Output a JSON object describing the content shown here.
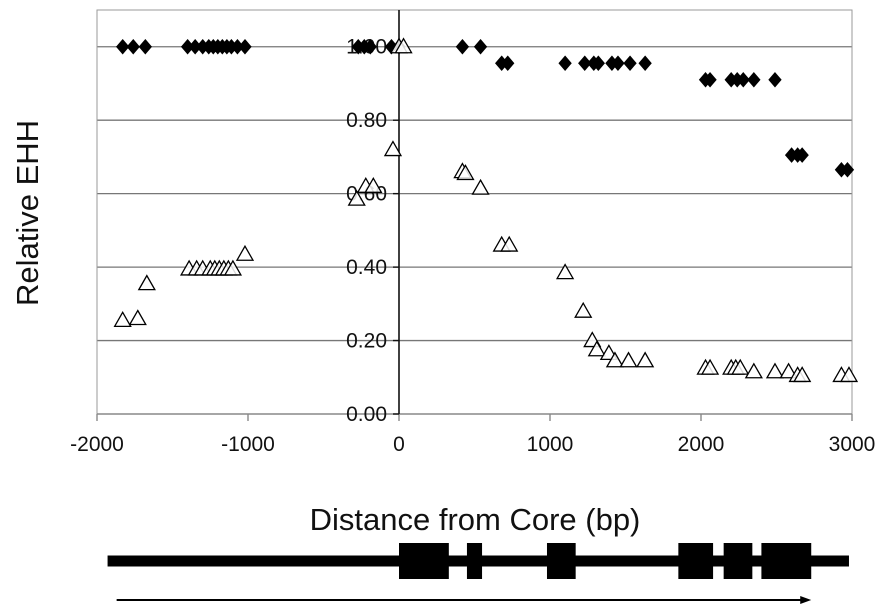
{
  "chart_data": {
    "type": "scatter",
    "title": "",
    "xlabel": "Distance from Core (bp)",
    "ylabel": "Relative EHH",
    "xlim": [
      -2000,
      3000
    ],
    "ylim": [
      0,
      1.1
    ],
    "x_ticks": [
      -2000,
      -1000,
      0,
      1000,
      2000,
      3000
    ],
    "x_tick_labels": [
      "-2000",
      "-1000",
      "0",
      "1000",
      "2000",
      "3000"
    ],
    "y_ticks": [
      0,
      0.2,
      0.4,
      0.6,
      0.8,
      1.0
    ],
    "y_tick_labels": [
      "0.00",
      "0.20",
      "0.40",
      "0.60",
      "0.80",
      "1.00"
    ],
    "grid": "horizontal",
    "legend": "none",
    "series": [
      {
        "marker": "diamond-filled",
        "color": "#000000",
        "points": [
          {
            "x": -1830,
            "y": 1.0
          },
          {
            "x": -1760,
            "y": 1.0
          },
          {
            "x": -1680,
            "y": 1.0
          },
          {
            "x": -1400,
            "y": 1.0
          },
          {
            "x": -1350,
            "y": 1.0
          },
          {
            "x": -1300,
            "y": 1.0
          },
          {
            "x": -1260,
            "y": 1.0
          },
          {
            "x": -1230,
            "y": 1.0
          },
          {
            "x": -1200,
            "y": 1.0
          },
          {
            "x": -1170,
            "y": 1.0
          },
          {
            "x": -1140,
            "y": 1.0
          },
          {
            "x": -1110,
            "y": 1.0
          },
          {
            "x": -1070,
            "y": 1.0
          },
          {
            "x": -1020,
            "y": 1.0
          },
          {
            "x": -270,
            "y": 1.0
          },
          {
            "x": -230,
            "y": 1.0
          },
          {
            "x": -190,
            "y": 1.0
          },
          {
            "x": -50,
            "y": 1.0
          },
          {
            "x": 0,
            "y": 1.0
          },
          {
            "x": 420,
            "y": 1.0
          },
          {
            "x": 540,
            "y": 1.0
          },
          {
            "x": 680,
            "y": 0.955
          },
          {
            "x": 720,
            "y": 0.955
          },
          {
            "x": 1100,
            "y": 0.955
          },
          {
            "x": 1230,
            "y": 0.955
          },
          {
            "x": 1290,
            "y": 0.955
          },
          {
            "x": 1320,
            "y": 0.955
          },
          {
            "x": 1410,
            "y": 0.955
          },
          {
            "x": 1450,
            "y": 0.955
          },
          {
            "x": 1530,
            "y": 0.955
          },
          {
            "x": 1630,
            "y": 0.955
          },
          {
            "x": 2030,
            "y": 0.91
          },
          {
            "x": 2060,
            "y": 0.91
          },
          {
            "x": 2200,
            "y": 0.91
          },
          {
            "x": 2240,
            "y": 0.91
          },
          {
            "x": 2280,
            "y": 0.91
          },
          {
            "x": 2350,
            "y": 0.91
          },
          {
            "x": 2490,
            "y": 0.91
          },
          {
            "x": 2600,
            "y": 0.705
          },
          {
            "x": 2640,
            "y": 0.705
          },
          {
            "x": 2670,
            "y": 0.705
          },
          {
            "x": 2930,
            "y": 0.665
          },
          {
            "x": 2970,
            "y": 0.665
          }
        ]
      },
      {
        "marker": "triangle-open",
        "color": "#000000",
        "points": [
          {
            "x": -1830,
            "y": 0.255
          },
          {
            "x": -1730,
            "y": 0.26
          },
          {
            "x": -1670,
            "y": 0.355
          },
          {
            "x": -1390,
            "y": 0.395
          },
          {
            "x": -1340,
            "y": 0.395
          },
          {
            "x": -1300,
            "y": 0.395
          },
          {
            "x": -1250,
            "y": 0.395
          },
          {
            "x": -1220,
            "y": 0.395
          },
          {
            "x": -1190,
            "y": 0.395
          },
          {
            "x": -1160,
            "y": 0.395
          },
          {
            "x": -1130,
            "y": 0.395
          },
          {
            "x": -1100,
            "y": 0.395
          },
          {
            "x": -1020,
            "y": 0.435
          },
          {
            "x": -280,
            "y": 0.585
          },
          {
            "x": -220,
            "y": 0.62
          },
          {
            "x": -170,
            "y": 0.62
          },
          {
            "x": -40,
            "y": 0.72
          },
          {
            "x": 0,
            "y": 1.0
          },
          {
            "x": 30,
            "y": 1.0
          },
          {
            "x": 420,
            "y": 0.66
          },
          {
            "x": 440,
            "y": 0.655
          },
          {
            "x": 540,
            "y": 0.615
          },
          {
            "x": 680,
            "y": 0.46
          },
          {
            "x": 730,
            "y": 0.46
          },
          {
            "x": 1100,
            "y": 0.385
          },
          {
            "x": 1220,
            "y": 0.28
          },
          {
            "x": 1280,
            "y": 0.2
          },
          {
            "x": 1310,
            "y": 0.175
          },
          {
            "x": 1390,
            "y": 0.165
          },
          {
            "x": 1430,
            "y": 0.145
          },
          {
            "x": 1520,
            "y": 0.145
          },
          {
            "x": 1630,
            "y": 0.145
          },
          {
            "x": 2030,
            "y": 0.125
          },
          {
            "x": 2060,
            "y": 0.125
          },
          {
            "x": 2200,
            "y": 0.125
          },
          {
            "x": 2230,
            "y": 0.125
          },
          {
            "x": 2260,
            "y": 0.125
          },
          {
            "x": 2350,
            "y": 0.115
          },
          {
            "x": 2490,
            "y": 0.115
          },
          {
            "x": 2580,
            "y": 0.115
          },
          {
            "x": 2640,
            "y": 0.105
          },
          {
            "x": 2670,
            "y": 0.105
          },
          {
            "x": 2930,
            "y": 0.105
          },
          {
            "x": 2980,
            "y": 0.105
          }
        ]
      }
    ],
    "gene_diagram": {
      "exons": [
        {
          "start": 0,
          "end": 330
        },
        {
          "start": 450,
          "end": 550
        },
        {
          "start": 980,
          "end": 1170
        },
        {
          "start": 1850,
          "end": 2080
        },
        {
          "start": 2150,
          "end": 2340
        },
        {
          "start": 2400,
          "end": 2730
        }
      ],
      "line_start": -1930,
      "line_end": 2980,
      "arrow_start": -1870,
      "arrow_end": 2730
    }
  }
}
